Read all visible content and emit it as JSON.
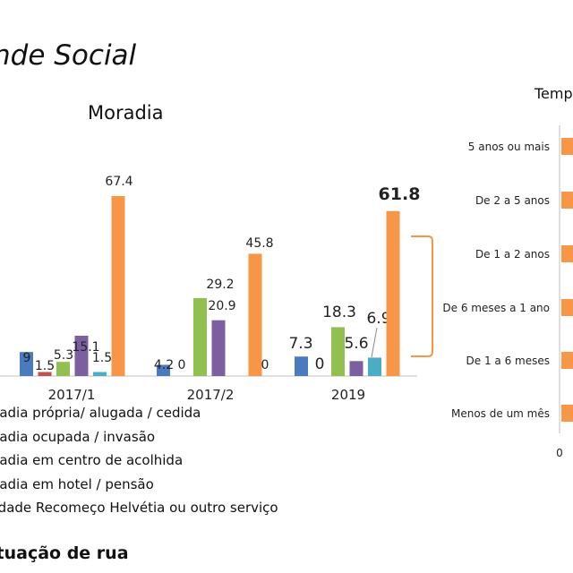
{
  "page": {
    "title": "nde Social",
    "footer": "ituação de rua"
  },
  "colors": {
    "blue": "#4a7bbf",
    "red": "#c0504d",
    "green": "#92c050",
    "purple": "#7b5fa0",
    "cyan": "#4bacc6",
    "orange": "#f79646"
  },
  "chart_data": [
    {
      "type": "bar",
      "title": "Moradia",
      "categories": [
        "2017/1",
        "2017/2",
        "2019"
      ],
      "series": [
        {
          "name": "oradia própria/ alugada / cedida",
          "color": "#4a7bbf",
          "values": [
            9,
            4.2,
            7.3
          ],
          "labels": [
            "9",
            "4.2",
            "7.3"
          ]
        },
        {
          "name": "oradia ocupada / invasão",
          "color": "#c0504d",
          "values": [
            1.5,
            0,
            0
          ],
          "labels": [
            "1.5",
            "0",
            "0"
          ]
        },
        {
          "name": "oradia em centro de acolhida",
          "color": "#92c050",
          "values": [
            5.3,
            29.2,
            18.3
          ],
          "labels": [
            "5.3",
            "29.2",
            "18.3"
          ]
        },
        {
          "name": "oradia em hotel / pensão",
          "color": "#7b5fa0",
          "values": [
            15.1,
            20.9,
            5.6
          ],
          "labels": [
            "15.1",
            "20.9",
            "5.6"
          ]
        },
        {
          "name": "nidade Recomeço Helvétia ou outro serviço",
          "color": "#4bacc6",
          "values": [
            1.5,
            0,
            6.9
          ],
          "labels": [
            "1.5",
            "0",
            "6.9"
          ]
        },
        {
          "name": "ituação de rua",
          "color": "#f79646",
          "values": [
            67.4,
            45.8,
            61.8
          ],
          "labels": [
            "67.4",
            "45.8",
            "61.8"
          ]
        }
      ]
    },
    {
      "type": "bar",
      "orientation": "horizontal",
      "title": "Temp",
      "categories": [
        "5 anos ou mais",
        "De 2 a 5 anos",
        "De 1 a 2 anos",
        "De 6 meses a 1 ano",
        "De 1 a 6 meses",
        "Menos de um mês"
      ],
      "x_tick_labels": [
        "0"
      ],
      "series": [
        {
          "color": "#f79646"
        }
      ]
    }
  ]
}
